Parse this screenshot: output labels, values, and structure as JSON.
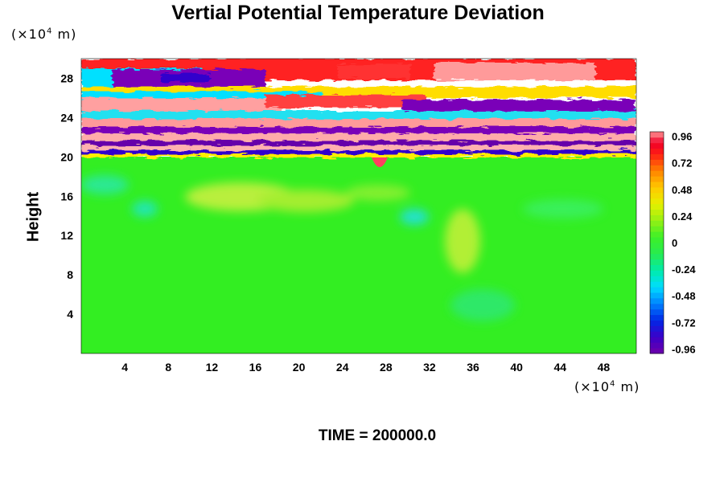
{
  "chart_data": {
    "type": "heatmap",
    "title": "Vertial Potential Temperature Deviation",
    "xlabel": "",
    "ylabel": "Height",
    "x_unit": {
      "base": "(×10",
      "exp": "4",
      "suffix": " m)"
    },
    "y_unit": {
      "base": "(×10",
      "exp": "4",
      "suffix": " m)"
    },
    "xlim": [
      0,
      51
    ],
    "ylim": [
      0,
      30
    ],
    "x_ticks": [
      4,
      8,
      12,
      16,
      20,
      24,
      28,
      32,
      36,
      40,
      44,
      48
    ],
    "y_ticks": [
      4,
      8,
      12,
      16,
      20,
      24,
      28
    ],
    "colorbar": {
      "range": [
        -1.0,
        1.0
      ],
      "ticks": [
        "0.96",
        "0.72",
        "0.48",
        "0.24",
        "0",
        "-0.24",
        "-0.48",
        "-0.72",
        "-0.96"
      ],
      "tick_values": [
        0.96,
        0.72,
        0.48,
        0.24,
        0,
        -0.24,
        -0.48,
        -0.72,
        -0.96
      ]
    },
    "description_bands": [
      {
        "y_from": 0,
        "y_to": 20,
        "value": 0.0
      },
      {
        "y_from": 20,
        "y_to": 30,
        "value": "alternating ±0.96"
      }
    ]
  },
  "footer": {
    "time_label": "TIME = 200000.0"
  }
}
